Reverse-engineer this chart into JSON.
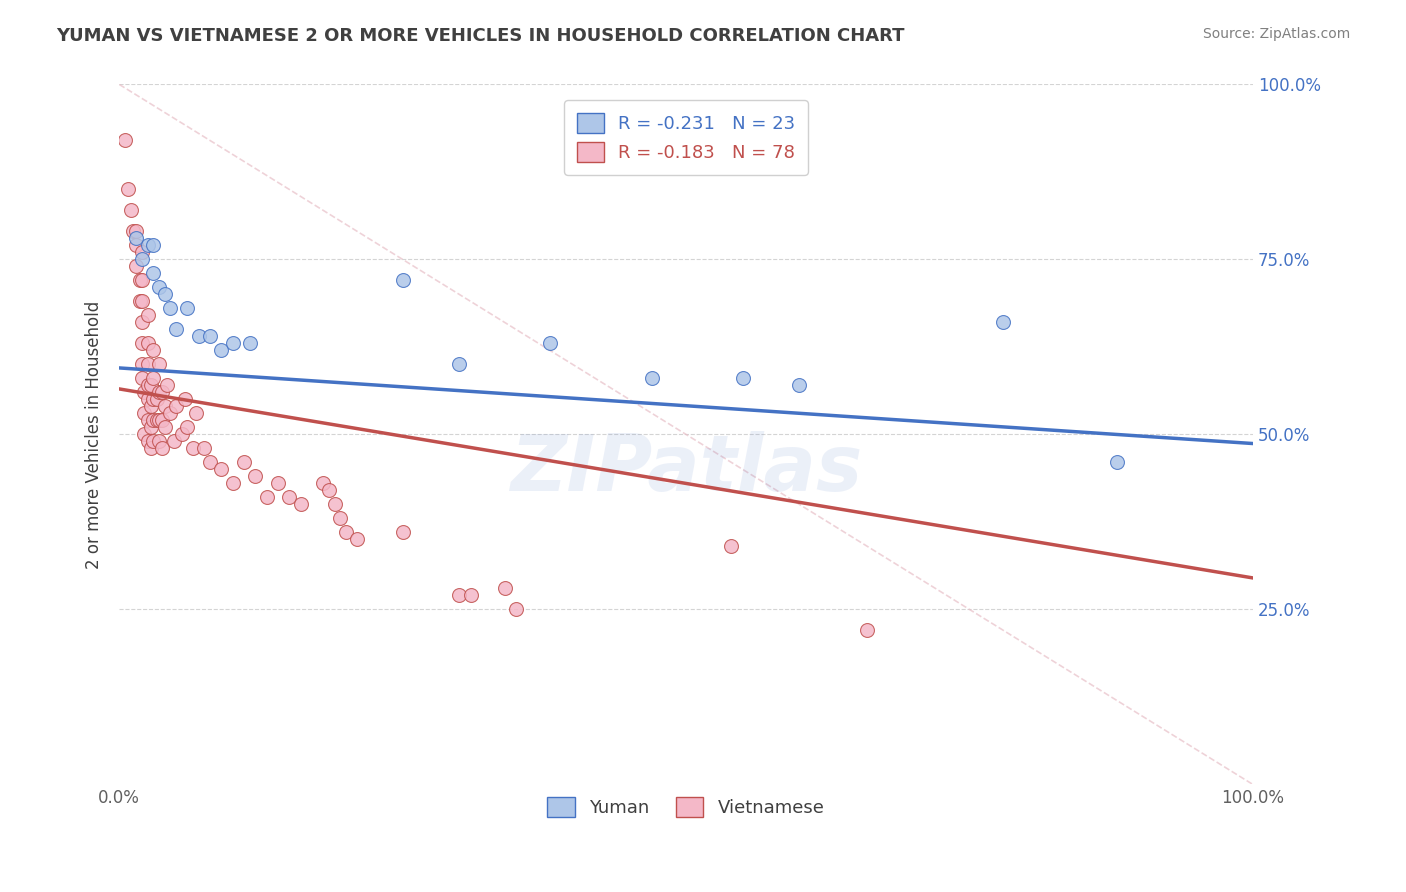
{
  "title": "YUMAN VS VIETNAMESE 2 OR MORE VEHICLES IN HOUSEHOLD CORRELATION CHART",
  "source": "Source: ZipAtlas.com",
  "ylabel": "2 or more Vehicles in Household",
  "xmin": 0.0,
  "xmax": 1.0,
  "ymin": 0.0,
  "ymax": 1.0,
  "legend_entries": [
    {
      "label": "R = -0.231   N = 23",
      "color": "#aec6e8",
      "text_color": "#4472c4"
    },
    {
      "label": "R = -0.183   N = 78",
      "color": "#f4b8c8",
      "text_color": "#c0504d"
    }
  ],
  "yuman_points": [
    [
      0.015,
      0.78
    ],
    [
      0.02,
      0.75
    ],
    [
      0.025,
      0.77
    ],
    [
      0.03,
      0.77
    ],
    [
      0.03,
      0.73
    ],
    [
      0.035,
      0.71
    ],
    [
      0.04,
      0.7
    ],
    [
      0.045,
      0.68
    ],
    [
      0.05,
      0.65
    ],
    [
      0.06,
      0.68
    ],
    [
      0.07,
      0.64
    ],
    [
      0.08,
      0.64
    ],
    [
      0.09,
      0.62
    ],
    [
      0.1,
      0.63
    ],
    [
      0.115,
      0.63
    ],
    [
      0.25,
      0.72
    ],
    [
      0.3,
      0.6
    ],
    [
      0.38,
      0.63
    ],
    [
      0.47,
      0.58
    ],
    [
      0.55,
      0.58
    ],
    [
      0.6,
      0.57
    ],
    [
      0.78,
      0.66
    ],
    [
      0.88,
      0.46
    ]
  ],
  "vietnamese_points": [
    [
      0.005,
      0.92
    ],
    [
      0.008,
      0.85
    ],
    [
      0.01,
      0.82
    ],
    [
      0.012,
      0.79
    ],
    [
      0.015,
      0.79
    ],
    [
      0.015,
      0.77
    ],
    [
      0.015,
      0.74
    ],
    [
      0.018,
      0.72
    ],
    [
      0.018,
      0.69
    ],
    [
      0.02,
      0.76
    ],
    [
      0.02,
      0.72
    ],
    [
      0.02,
      0.69
    ],
    [
      0.02,
      0.66
    ],
    [
      0.02,
      0.63
    ],
    [
      0.02,
      0.6
    ],
    [
      0.02,
      0.58
    ],
    [
      0.022,
      0.56
    ],
    [
      0.022,
      0.53
    ],
    [
      0.022,
      0.5
    ],
    [
      0.025,
      0.67
    ],
    [
      0.025,
      0.63
    ],
    [
      0.025,
      0.6
    ],
    [
      0.025,
      0.57
    ],
    [
      0.025,
      0.55
    ],
    [
      0.025,
      0.52
    ],
    [
      0.025,
      0.49
    ],
    [
      0.028,
      0.57
    ],
    [
      0.028,
      0.54
    ],
    [
      0.028,
      0.51
    ],
    [
      0.028,
      0.48
    ],
    [
      0.03,
      0.62
    ],
    [
      0.03,
      0.58
    ],
    [
      0.03,
      0.55
    ],
    [
      0.03,
      0.52
    ],
    [
      0.03,
      0.49
    ],
    [
      0.033,
      0.55
    ],
    [
      0.033,
      0.52
    ],
    [
      0.035,
      0.6
    ],
    [
      0.035,
      0.56
    ],
    [
      0.035,
      0.52
    ],
    [
      0.035,
      0.49
    ],
    [
      0.038,
      0.56
    ],
    [
      0.038,
      0.52
    ],
    [
      0.038,
      0.48
    ],
    [
      0.04,
      0.54
    ],
    [
      0.04,
      0.51
    ],
    [
      0.042,
      0.57
    ],
    [
      0.045,
      0.53
    ],
    [
      0.048,
      0.49
    ],
    [
      0.05,
      0.54
    ],
    [
      0.055,
      0.5
    ],
    [
      0.058,
      0.55
    ],
    [
      0.06,
      0.51
    ],
    [
      0.065,
      0.48
    ],
    [
      0.068,
      0.53
    ],
    [
      0.075,
      0.48
    ],
    [
      0.08,
      0.46
    ],
    [
      0.09,
      0.45
    ],
    [
      0.1,
      0.43
    ],
    [
      0.11,
      0.46
    ],
    [
      0.12,
      0.44
    ],
    [
      0.13,
      0.41
    ],
    [
      0.14,
      0.43
    ],
    [
      0.15,
      0.41
    ],
    [
      0.16,
      0.4
    ],
    [
      0.18,
      0.43
    ],
    [
      0.185,
      0.42
    ],
    [
      0.19,
      0.4
    ],
    [
      0.195,
      0.38
    ],
    [
      0.2,
      0.36
    ],
    [
      0.21,
      0.35
    ],
    [
      0.25,
      0.36
    ],
    [
      0.3,
      0.27
    ],
    [
      0.31,
      0.27
    ],
    [
      0.34,
      0.28
    ],
    [
      0.35,
      0.25
    ],
    [
      0.54,
      0.34
    ],
    [
      0.66,
      0.22
    ]
  ],
  "yuman_line_color": "#4472c4",
  "vietnamese_line_color": "#c0504d",
  "yuman_scatter_color": "#aec6e8",
  "vietnamese_scatter_color": "#f4b8c8",
  "yuman_line_x": [
    0.0,
    1.0
  ],
  "yuman_line_y": [
    0.595,
    0.487
  ],
  "vietnamese_line_x": [
    0.0,
    1.0
  ],
  "vietnamese_line_y": [
    0.565,
    0.295
  ],
  "diagonal_line_color": "#e8c0c8",
  "title_color": "#404040",
  "source_color": "#808080",
  "right_ytick_color": "#4472c4",
  "background_color": "#ffffff",
  "grid_color": "#d0d0d0",
  "marker_size": 100
}
